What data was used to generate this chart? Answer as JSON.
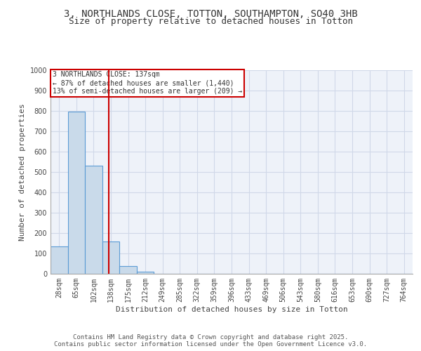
{
  "title_line1": "3, NORTHLANDS CLOSE, TOTTON, SOUTHAMPTON, SO40 3HB",
  "title_line2": "Size of property relative to detached houses in Totton",
  "xlabel": "Distribution of detached houses by size in Totton",
  "ylabel": "Number of detached properties",
  "bar_labels": [
    "28sqm",
    "65sqm",
    "102sqm",
    "138sqm",
    "175sqm",
    "212sqm",
    "249sqm",
    "285sqm",
    "322sqm",
    "359sqm",
    "396sqm",
    "433sqm",
    "469sqm",
    "506sqm",
    "543sqm",
    "580sqm",
    "616sqm",
    "653sqm",
    "690sqm",
    "727sqm",
    "764sqm"
  ],
  "bar_values": [
    135,
    795,
    530,
    160,
    38,
    12,
    0,
    0,
    0,
    0,
    0,
    0,
    0,
    0,
    0,
    0,
    0,
    0,
    0,
    0,
    0
  ],
  "bar_color": "#c9daea",
  "bar_edge_color": "#5b9bd5",
  "bar_edge_width": 0.8,
  "red_line_x": 2.87,
  "red_line_color": "#cc0000",
  "ylim": [
    0,
    1000
  ],
  "yticks": [
    0,
    100,
    200,
    300,
    400,
    500,
    600,
    700,
    800,
    900,
    1000
  ],
  "grid_color": "#d0d8e8",
  "bg_color": "#eef2f9",
  "annotation_text": "3 NORTHLANDS CLOSE: 137sqm\n← 87% of detached houses are smaller (1,440)\n13% of semi-detached houses are larger (209) →",
  "annotation_box_color": "#ffffff",
  "annotation_box_edge": "#cc0000",
  "footer_line1": "Contains HM Land Registry data © Crown copyright and database right 2025.",
  "footer_line2": "Contains public sector information licensed under the Open Government Licence v3.0.",
  "title_fontsize": 10,
  "subtitle_fontsize": 9,
  "label_fontsize": 8,
  "tick_fontsize": 7,
  "annotation_fontsize": 7,
  "footer_fontsize": 6.5
}
